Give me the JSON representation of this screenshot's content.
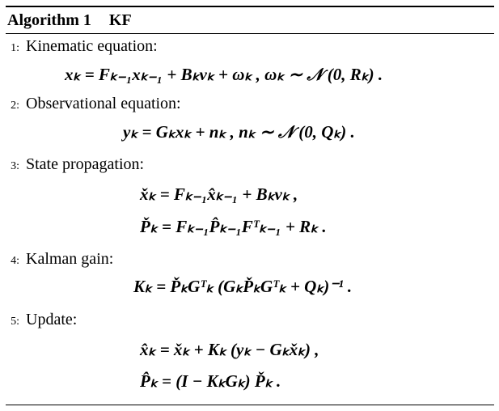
{
  "header": {
    "label": "Algorithm 1",
    "name": "KF"
  },
  "steps": [
    {
      "num": "1:",
      "title": "Kinematic equation:",
      "equations": [
        "xₖ = Fₖ₋₁xₖ₋₁ + Bₖvₖ + ωₖ , ωₖ ∼ 𝒩 (0, Rₖ) ."
      ]
    },
    {
      "num": "2:",
      "title": "Observational equation:",
      "equations": [
        "yₖ = Gₖxₖ + nₖ , nₖ ∼ 𝒩 (0, Qₖ) ."
      ]
    },
    {
      "num": "3:",
      "title": "State propagation:",
      "equations": [
        "x̌ₖ = Fₖ₋₁x̂ₖ₋₁ + Bₖvₖ ,",
        "P̌ₖ = Fₖ₋₁P̂ₖ₋₁Fᵀₖ₋₁ + Rₖ ."
      ]
    },
    {
      "num": "4:",
      "title": "Kalman gain:",
      "equations": [
        "Kₖ = P̌ₖGᵀₖ (GₖP̌ₖGᵀₖ + Qₖ)⁻¹ ."
      ]
    },
    {
      "num": "5:",
      "title": "Update:",
      "equations": [
        "x̂ₖ = x̌ₖ + Kₖ (yₖ − Gₖx̌ₖ) ,",
        "P̂ₖ = (I − KₖGₖ) P̌ₖ ."
      ]
    }
  ]
}
